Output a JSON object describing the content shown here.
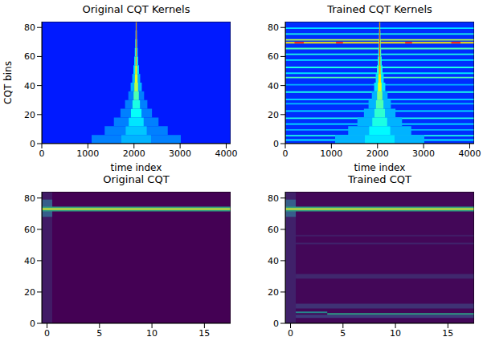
{
  "chart_data": [
    {
      "type": "heatmap",
      "title": "Original CQT Kernels",
      "x_label": "time index",
      "y_label": "CQT bins",
      "color": "jet",
      "xlim": [
        0,
        4096
      ],
      "xticks": [
        0,
        1000,
        2000,
        3000,
        4000
      ],
      "ylim": [
        0,
        84
      ],
      "yticks": [
        0,
        20,
        40,
        60,
        80
      ],
      "zlim": [
        0,
        1
      ],
      "cells": [
        {
          "x": [
            0,
            4096
          ],
          "y": [
            0,
            84
          ],
          "value": 0.15
        },
        {
          "x": [
            1081,
            3015
          ],
          "y": [
            0,
            6
          ],
          "value": 0.25
        },
        {
          "x": [
            1726,
            2370
          ],
          "y": [
            0,
            6
          ],
          "value": 0.3
        },
        {
          "x": [
            1364,
            2732
          ],
          "y": [
            6,
            12
          ],
          "value": 0.25
        },
        {
          "x": [
            1820,
            2276
          ],
          "y": [
            6,
            12
          ],
          "value": 0.32
        },
        {
          "x": [
            1564,
            2532
          ],
          "y": [
            12,
            18
          ],
          "value": 0.25
        },
        {
          "x": [
            1887,
            2209
          ],
          "y": [
            12,
            18
          ],
          "value": 0.35
        },
        {
          "x": [
            1706,
            2390
          ],
          "y": [
            18,
            24
          ],
          "value": 0.25
        },
        {
          "x": [
            1934,
            2162
          ],
          "y": [
            18,
            24
          ],
          "value": 0.38
        },
        {
          "x": [
            1806,
            2290
          ],
          "y": [
            24,
            30
          ],
          "value": 0.25
        },
        {
          "x": [
            1967,
            2129
          ],
          "y": [
            24,
            30
          ],
          "value": 0.4
        },
        {
          "x": [
            1877,
            2219
          ],
          "y": [
            30,
            36
          ],
          "value": 0.25
        },
        {
          "x": [
            1991,
            2105
          ],
          "y": [
            30,
            36
          ],
          "value": 0.45
        },
        {
          "x": [
            1927,
            2169
          ],
          "y": [
            36,
            42
          ],
          "value": 0.3
        },
        {
          "x": [
            2008,
            2088
          ],
          "y": [
            36,
            42
          ],
          "value": 0.55
        },
        {
          "x": [
            1962,
            2134
          ],
          "y": [
            42,
            48
          ],
          "value": 0.3
        },
        {
          "x": [
            2019,
            2077
          ],
          "y": [
            42,
            48
          ],
          "value": 0.6
        },
        {
          "x": [
            1988,
            2108
          ],
          "y": [
            48,
            54
          ],
          "value": 0.35
        },
        {
          "x": [
            2028,
            2068
          ],
          "y": [
            48,
            54
          ],
          "value": 0.65
        },
        {
          "x": [
            2005,
            2091
          ],
          "y": [
            54,
            60
          ],
          "value": 0.35
        },
        {
          "x": [
            2034,
            2062
          ],
          "y": [
            54,
            60
          ],
          "value": 0.7
        },
        {
          "x": [
            2018,
            2078
          ],
          "y": [
            60,
            66
          ],
          "value": 0.4
        },
        {
          "x": [
            2038,
            2058
          ],
          "y": [
            60,
            66
          ],
          "value": 0.75
        },
        {
          "x": [
            2027,
            2069
          ],
          "y": [
            66,
            72
          ],
          "value": 0.45
        },
        {
          "x": [
            2041,
            2055
          ],
          "y": [
            66,
            72
          ],
          "value": 0.8
        },
        {
          "x": [
            2033,
            2063
          ],
          "y": [
            72,
            78
          ],
          "value": 0.5
        },
        {
          "x": [
            2043,
            2053
          ],
          "y": [
            72,
            78
          ],
          "value": 0.85
        },
        {
          "x": [
            2037,
            2059
          ],
          "y": [
            78,
            84
          ],
          "value": 0.55
        },
        {
          "x": [
            2044,
            2052
          ],
          "y": [
            78,
            84
          ],
          "value": 0.9
        }
      ]
    },
    {
      "type": "heatmap",
      "title": "Trained CQT Kernels",
      "x_label": "time index",
      "color": "jet",
      "xlim": [
        0,
        4096
      ],
      "xticks": [
        0,
        1000,
        2000,
        3000,
        4000
      ],
      "ylim": [
        0,
        84
      ],
      "yticks": [
        0,
        20,
        40,
        60,
        80
      ],
      "zlim": [
        0,
        1
      ],
      "cells": [
        {
          "x": [
            0,
            4096
          ],
          "y": [
            0,
            84
          ],
          "value": 0.17
        },
        {
          "x": [
            0,
            4096
          ],
          "y": [
            2,
            3
          ],
          "value": 0.35
        },
        {
          "x": [
            0,
            4096
          ],
          "y": [
            5,
            6
          ],
          "value": 0.4
        },
        {
          "x": [
            0,
            4096
          ],
          "y": [
            9,
            10
          ],
          "value": 0.3
        },
        {
          "x": [
            0,
            4096
          ],
          "y": [
            13,
            14
          ],
          "value": 0.35
        },
        {
          "x": [
            0,
            4096
          ],
          "y": [
            17,
            18
          ],
          "value": 0.4
        },
        {
          "x": [
            0,
            4096
          ],
          "y": [
            22,
            23
          ],
          "value": 0.35
        },
        {
          "x": [
            0,
            4096
          ],
          "y": [
            27,
            28
          ],
          "value": 0.3
        },
        {
          "x": [
            0,
            4096
          ],
          "y": [
            30,
            31
          ],
          "value": 0.35
        },
        {
          "x": [
            0,
            4096
          ],
          "y": [
            35,
            36
          ],
          "value": 0.4
        },
        {
          "x": [
            0,
            4096
          ],
          "y": [
            40,
            41
          ],
          "value": 0.3
        },
        {
          "x": [
            0,
            4096
          ],
          "y": [
            45,
            46
          ],
          "value": 0.45
        },
        {
          "x": [
            0,
            4096
          ],
          "y": [
            48,
            49
          ],
          "value": 0.35
        },
        {
          "x": [
            0,
            4096
          ],
          "y": [
            52,
            53
          ],
          "value": 0.4
        },
        {
          "x": [
            0,
            4096
          ],
          "y": [
            57,
            58
          ],
          "value": 0.35
        },
        {
          "x": [
            0,
            4096
          ],
          "y": [
            61,
            62
          ],
          "value": 0.4
        },
        {
          "x": [
            0,
            4096
          ],
          "y": [
            65,
            66
          ],
          "value": 0.45
        },
        {
          "x": [
            0,
            4096
          ],
          "y": [
            69,
            70
          ],
          "value": 0.65
        },
        {
          "x": [
            0,
            4096
          ],
          "y": [
            71,
            72
          ],
          "value": 0.55
        },
        {
          "x": [
            0,
            4096
          ],
          "y": [
            75,
            76
          ],
          "value": 0.4
        },
        {
          "x": [
            0,
            4096
          ],
          "y": [
            79,
            80
          ],
          "value": 0.35
        },
        {
          "x": [
            200,
            400
          ],
          "y": [
            69,
            70
          ],
          "value": 0.85
        },
        {
          "x": [
            1100,
            1250
          ],
          "y": [
            69,
            70
          ],
          "value": 0.85
        },
        {
          "x": [
            2600,
            2750
          ],
          "y": [
            69,
            70
          ],
          "value": 0.85
        },
        {
          "x": [
            3600,
            3800
          ],
          "y": [
            69,
            70
          ],
          "value": 0.85
        },
        {
          "x": [
            1081,
            3015
          ],
          "y": [
            0,
            6
          ],
          "value": 0.3
        },
        {
          "x": [
            1726,
            2370
          ],
          "y": [
            0,
            6
          ],
          "value": 0.35
        },
        {
          "x": [
            1364,
            2732
          ],
          "y": [
            6,
            12
          ],
          "value": 0.3
        },
        {
          "x": [
            1820,
            2276
          ],
          "y": [
            6,
            12
          ],
          "value": 0.37
        },
        {
          "x": [
            1564,
            2532
          ],
          "y": [
            12,
            18
          ],
          "value": 0.3
        },
        {
          "x": [
            1887,
            2209
          ],
          "y": [
            12,
            18
          ],
          "value": 0.4
        },
        {
          "x": [
            1706,
            2390
          ],
          "y": [
            18,
            24
          ],
          "value": 0.3
        },
        {
          "x": [
            1934,
            2162
          ],
          "y": [
            18,
            24
          ],
          "value": 0.42
        },
        {
          "x": [
            1806,
            2290
          ],
          "y": [
            24,
            30
          ],
          "value": 0.3
        },
        {
          "x": [
            1967,
            2129
          ],
          "y": [
            24,
            30
          ],
          "value": 0.45
        },
        {
          "x": [
            1877,
            2219
          ],
          "y": [
            30,
            36
          ],
          "value": 0.3
        },
        {
          "x": [
            1991,
            2105
          ],
          "y": [
            30,
            36
          ],
          "value": 0.5
        },
        {
          "x": [
            1927,
            2169
          ],
          "y": [
            36,
            42
          ],
          "value": 0.35
        },
        {
          "x": [
            2008,
            2088
          ],
          "y": [
            36,
            42
          ],
          "value": 0.6
        },
        {
          "x": [
            1962,
            2134
          ],
          "y": [
            42,
            48
          ],
          "value": 0.35
        },
        {
          "x": [
            2019,
            2077
          ],
          "y": [
            42,
            48
          ],
          "value": 0.65
        },
        {
          "x": [
            1988,
            2108
          ],
          "y": [
            48,
            54
          ],
          "value": 0.4
        },
        {
          "x": [
            2028,
            2068
          ],
          "y": [
            48,
            54
          ],
          "value": 0.7
        },
        {
          "x": [
            2005,
            2091
          ],
          "y": [
            54,
            60
          ],
          "value": 0.4
        },
        {
          "x": [
            2034,
            2062
          ],
          "y": [
            54,
            60
          ],
          "value": 0.75
        },
        {
          "x": [
            2018,
            2078
          ],
          "y": [
            60,
            66
          ],
          "value": 0.45
        },
        {
          "x": [
            2038,
            2058
          ],
          "y": [
            60,
            66
          ],
          "value": 0.8
        },
        {
          "x": [
            2027,
            2069
          ],
          "y": [
            66,
            72
          ],
          "value": 0.5
        },
        {
          "x": [
            2041,
            2055
          ],
          "y": [
            66,
            72
          ],
          "value": 0.85
        },
        {
          "x": [
            2033,
            2063
          ],
          "y": [
            72,
            78
          ],
          "value": 0.55
        },
        {
          "x": [
            2043,
            2053
          ],
          "y": [
            72,
            78
          ],
          "value": 0.9
        },
        {
          "x": [
            2037,
            2059
          ],
          "y": [
            78,
            84
          ],
          "value": 0.6
        },
        {
          "x": [
            2044,
            2052
          ],
          "y": [
            78,
            84
          ],
          "value": 0.9
        }
      ]
    },
    {
      "type": "heatmap",
      "title": "Original CQT",
      "color": "viridis",
      "xlim": [
        -0.5,
        17.5
      ],
      "xticks": [
        0,
        5,
        10,
        15
      ],
      "ylim": [
        0,
        84
      ],
      "yticks": [
        0,
        20,
        40,
        60,
        80
      ],
      "zlim": [
        0,
        1
      ],
      "cells": [
        {
          "x": [
            -0.5,
            17.5
          ],
          "y": [
            0,
            84
          ],
          "value": 0
        },
        {
          "x": [
            -0.5,
            0.5
          ],
          "y": [
            0,
            84
          ],
          "value": 0.08
        },
        {
          "x": [
            -0.5,
            0.5
          ],
          "y": [
            68,
            79
          ],
          "value": 0.3
        },
        {
          "x": [
            -0.5,
            17.5
          ],
          "y": [
            71.5,
            74.5
          ],
          "value": 0.55
        },
        {
          "x": [
            -0.5,
            17.5
          ],
          "y": [
            72.5,
            73.5
          ],
          "value": 0.95
        }
      ]
    },
    {
      "type": "heatmap",
      "title": "Trained CQT",
      "color": "viridis",
      "xlim": [
        -0.5,
        17.5
      ],
      "xticks": [
        0,
        5,
        10,
        15
      ],
      "ylim": [
        0,
        84
      ],
      "yticks": [
        0,
        20,
        40,
        60,
        80
      ],
      "zlim": [
        0,
        1
      ],
      "cells": [
        {
          "x": [
            -0.5,
            17.5
          ],
          "y": [
            0,
            84
          ],
          "value": 0.02
        },
        {
          "x": [
            -0.5,
            17.5
          ],
          "y": [
            3.5,
            5.5
          ],
          "value": 0.18
        },
        {
          "x": [
            -0.5,
            17.5
          ],
          "y": [
            9.5,
            12.5
          ],
          "value": 0.15
        },
        {
          "x": [
            3.5,
            17.5
          ],
          "y": [
            5.5,
            6.5
          ],
          "value": 0.55
        },
        {
          "x": [
            -0.5,
            3.5
          ],
          "y": [
            6.5,
            7.5
          ],
          "value": 0.45
        },
        {
          "x": [
            -0.5,
            17.5
          ],
          "y": [
            28.5,
            31.5
          ],
          "value": 0.12
        },
        {
          "x": [
            -0.5,
            17.5
          ],
          "y": [
            50.5,
            51.5
          ],
          "value": 0.1
        },
        {
          "x": [
            -0.5,
            17.5
          ],
          "y": [
            55.5,
            56.5
          ],
          "value": 0.08
        },
        {
          "x": [
            -0.5,
            0.5
          ],
          "y": [
            0,
            84
          ],
          "value": 0.1
        },
        {
          "x": [
            -0.5,
            0.5
          ],
          "y": [
            68,
            79
          ],
          "value": 0.3
        },
        {
          "x": [
            -0.5,
            17.5
          ],
          "y": [
            71.5,
            74.5
          ],
          "value": 0.55
        },
        {
          "x": [
            -0.5,
            17.5
          ],
          "y": [
            72.5,
            73.5
          ],
          "value": 0.95
        }
      ]
    }
  ]
}
